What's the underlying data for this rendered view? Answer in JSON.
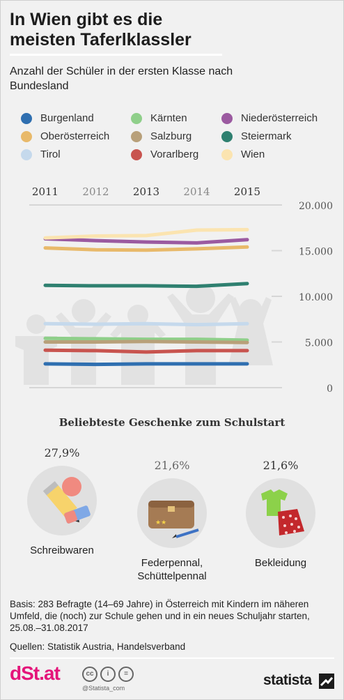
{
  "title": "In Wien gibt es die meisten Taferlklassler",
  "subtitle": "Anzahl der Schüler in der ersten Klasse nach Bundesland",
  "chart_data": {
    "type": "line",
    "title": "In Wien gibt es die meisten Taferlklassler",
    "subtitle": "Anzahl der Schüler in der ersten Klasse nach Bundesland",
    "x": [
      "2011",
      "2012",
      "2013",
      "2014",
      "2015"
    ],
    "ylim": [
      0,
      20000
    ],
    "yticks": [
      0,
      5000,
      10000,
      15000,
      20000
    ],
    "ytick_labels": [
      "0",
      "5.000",
      "10.000",
      "15.000",
      "20.000"
    ],
    "grid": false,
    "legend_position": "top",
    "series": [
      {
        "name": "Burgenland",
        "color": "#2f6fb0",
        "values": [
          2600,
          2550,
          2600,
          2600,
          2600
        ]
      },
      {
        "name": "Kärnten",
        "color": "#8fcf8a",
        "values": [
          5400,
          5350,
          5300,
          5300,
          5200
        ]
      },
      {
        "name": "Niederösterreich",
        "color": "#9b5aa0",
        "values": [
          16300,
          16100,
          15950,
          15850,
          16200
        ]
      },
      {
        "name": "Oberösterreich",
        "color": "#e8b96a",
        "values": [
          15300,
          15100,
          15050,
          15200,
          15400
        ]
      },
      {
        "name": "Salzburg",
        "color": "#b8a07a",
        "values": [
          5000,
          5000,
          5050,
          5000,
          4950
        ]
      },
      {
        "name": "Steiermark",
        "color": "#2f8070",
        "values": [
          11200,
          11150,
          11150,
          11100,
          11400
        ]
      },
      {
        "name": "Tirol",
        "color": "#c5d9ec",
        "values": [
          7000,
          6950,
          7000,
          6900,
          7000
        ]
      },
      {
        "name": "Vorarlberg",
        "color": "#c8544f",
        "values": [
          4100,
          4050,
          3900,
          4050,
          4050
        ]
      },
      {
        "name": "Wien",
        "color": "#fbe4b0",
        "values": [
          16400,
          16600,
          16650,
          17250,
          17300
        ]
      }
    ]
  },
  "legend_order": [
    "Burgenland",
    "Kärnten",
    "Niederösterreich",
    "Oberösterreich",
    "Salzburg",
    "Steiermark",
    "Tirol",
    "Vorarlberg",
    "Wien"
  ],
  "gifts": {
    "title": "Beliebteste Geschenke zum Schulstart",
    "items": [
      {
        "pct": "27,9%",
        "label": "Schreibwaren",
        "icon": "pencil-eraser-icon"
      },
      {
        "pct": "21,6%",
        "label": "Federpennal, Schüttelpennal",
        "icon": "pencil-case-icon"
      },
      {
        "pct": "21,6%",
        "label": "Bekleidung",
        "icon": "clothing-icon"
      }
    ]
  },
  "basis": "Basis: 283 Befragte (14–69 Jahre) in Österreich mit Kindern im näheren Umfeld, die (noch) zur Schule gehen und in ein neues Schuljahr starten, 25.08.–31.08.2017",
  "sources": "Quellen: Statistik Austria, Handelsverband",
  "footer": {
    "brand": "dSt.at",
    "license_icons": [
      "cc-icon",
      "by-icon",
      "nd-icon"
    ],
    "handle": "@Statista_com",
    "statista": "statista"
  },
  "colors": {
    "brand_pink": "#e4157a",
    "background": "#f1f1f1"
  }
}
